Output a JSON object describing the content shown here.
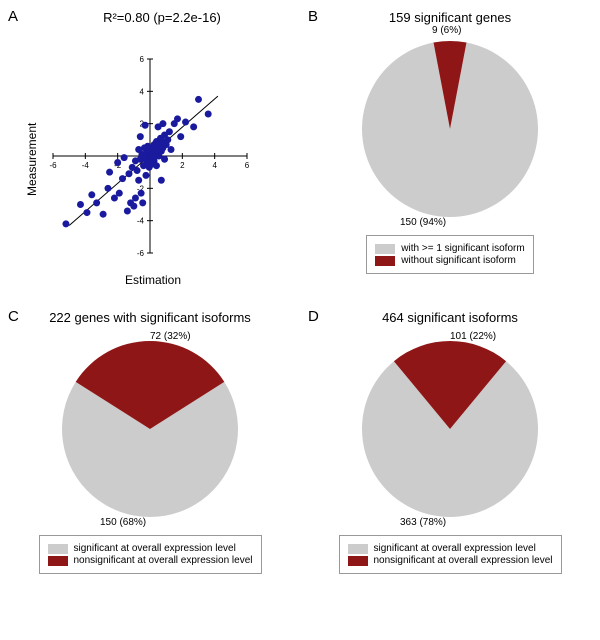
{
  "panelA": {
    "label": "A",
    "title": "R²=0.80 (p=2.2e-16)",
    "xlabel": "Estimation",
    "ylabel": "Measurement",
    "xlim": [
      -6,
      6
    ],
    "ylim": [
      -6,
      6
    ],
    "ticks": [
      -6,
      -4,
      -2,
      0,
      2,
      4,
      6
    ],
    "tick_fontsize": 8,
    "point_color": "#1a1a9e",
    "point_radius": 3.5,
    "line_color": "#000000",
    "line_width": 1,
    "background_color": "#ffffff",
    "axis_color": "#000000",
    "points": [
      [
        -5.2,
        -4.2
      ],
      [
        -4.3,
        -3.0
      ],
      [
        -3.9,
        -3.5
      ],
      [
        -3.6,
        -2.4
      ],
      [
        -3.3,
        -2.9
      ],
      [
        -2.9,
        -3.6
      ],
      [
        -2.6,
        -2.0
      ],
      [
        -2.5,
        -1.0
      ],
      [
        -2.2,
        -2.6
      ],
      [
        -2.0,
        -0.4
      ],
      [
        -1.9,
        -2.3
      ],
      [
        -1.7,
        -1.4
      ],
      [
        -1.6,
        -0.1
      ],
      [
        -1.4,
        -3.4
      ],
      [
        -1.3,
        -1.1
      ],
      [
        -1.2,
        -2.9
      ],
      [
        -1.1,
        -0.7
      ],
      [
        -1.0,
        -3.1
      ],
      [
        -0.9,
        -0.3
      ],
      [
        -0.9,
        -2.6
      ],
      [
        -0.8,
        -0.9
      ],
      [
        -0.7,
        0.4
      ],
      [
        -0.7,
        -1.5
      ],
      [
        -0.6,
        -0.2
      ],
      [
        -0.55,
        -2.3
      ],
      [
        -0.5,
        0.1
      ],
      [
        -0.45,
        -2.9
      ],
      [
        -0.4,
        -0.6
      ],
      [
        -0.35,
        0.5
      ],
      [
        -0.3,
        -0.1
      ],
      [
        -0.3,
        1.9
      ],
      [
        -0.25,
        -1.2
      ],
      [
        -0.2,
        0.2
      ],
      [
        -0.2,
        -0.4
      ],
      [
        -0.15,
        0.6
      ],
      [
        -0.1,
        -0.1
      ],
      [
        -0.1,
        0.4
      ],
      [
        -0.05,
        0.1
      ],
      [
        -0.05,
        -0.7
      ],
      [
        0.0,
        0.0
      ],
      [
        0.0,
        -0.3
      ],
      [
        0.05,
        0.3
      ],
      [
        0.1,
        -0.2
      ],
      [
        0.1,
        0.5
      ],
      [
        0.15,
        0.0
      ],
      [
        0.15,
        -0.5
      ],
      [
        0.2,
        0.4
      ],
      [
        0.2,
        0.1
      ],
      [
        0.25,
        0.7
      ],
      [
        0.25,
        -0.3
      ],
      [
        0.3,
        0.2
      ],
      [
        0.35,
        0.6
      ],
      [
        0.35,
        0.0
      ],
      [
        0.4,
        0.9
      ],
      [
        0.4,
        -0.6
      ],
      [
        0.45,
        0.3
      ],
      [
        0.5,
        0.5
      ],
      [
        0.5,
        1.8
      ],
      [
        0.55,
        0.0
      ],
      [
        0.6,
        0.7
      ],
      [
        0.65,
        1.1
      ],
      [
        0.7,
        0.3
      ],
      [
        0.75,
        0.9
      ],
      [
        0.8,
        2.0
      ],
      [
        0.8,
        0.5
      ],
      [
        0.9,
        -0.2
      ],
      [
        0.9,
        1.3
      ],
      [
        1.0,
        0.7
      ],
      [
        1.1,
        1.0
      ],
      [
        1.2,
        1.5
      ],
      [
        1.3,
        0.4
      ],
      [
        1.5,
        2.0
      ],
      [
        1.7,
        2.3
      ],
      [
        1.9,
        1.2
      ],
      [
        2.2,
        2.1
      ],
      [
        2.7,
        1.8
      ],
      [
        3.0,
        3.5
      ],
      [
        3.6,
        2.6
      ],
      [
        0.7,
        -1.5
      ],
      [
        -0.6,
        1.2
      ]
    ]
  },
  "panelB": {
    "label": "B",
    "title": "159 significant genes",
    "pie_radius": 88,
    "slices": [
      {
        "label": "150 (94%)",
        "value": 94,
        "color": "#cccccc",
        "label_pos": "bl"
      },
      {
        "label": "9 (6%)",
        "value": 6,
        "color": "#8f1616",
        "label_pos": "t"
      }
    ],
    "start_angle": -79.2,
    "legend": [
      {
        "swatch": "#cccccc",
        "text": "with >= 1 significant isoform"
      },
      {
        "swatch": "#8f1616",
        "text": "without significant isoform"
      }
    ]
  },
  "panelC": {
    "label": "C",
    "title": "222 genes with significant isoforms",
    "pie_radius": 88,
    "slices": [
      {
        "label": "150 (68%)",
        "value": 68,
        "color": "#cccccc",
        "label_pos": "bl"
      },
      {
        "label": "72 (32%)",
        "value": 32,
        "color": "#8f1616",
        "label_pos": "r"
      }
    ],
    "start_angle": -32.4,
    "legend": [
      {
        "swatch": "#cccccc",
        "text": "significant at overall expression level"
      },
      {
        "swatch": "#8f1616",
        "text": "nonsignificant at overall expression level"
      }
    ]
  },
  "panelD": {
    "label": "D",
    "title": "464 significant isoforms",
    "pie_radius": 88,
    "slices": [
      {
        "label": "363 (78%)",
        "value": 78,
        "color": "#cccccc",
        "label_pos": "bl"
      },
      {
        "label": "101 (22%)",
        "value": 22,
        "color": "#8f1616",
        "label_pos": "r"
      }
    ],
    "start_angle": -50.4,
    "legend": [
      {
        "swatch": "#cccccc",
        "text": "significant at overall expression level"
      },
      {
        "swatch": "#8f1616",
        "text": "nonsignificant at overall expression level"
      }
    ]
  }
}
